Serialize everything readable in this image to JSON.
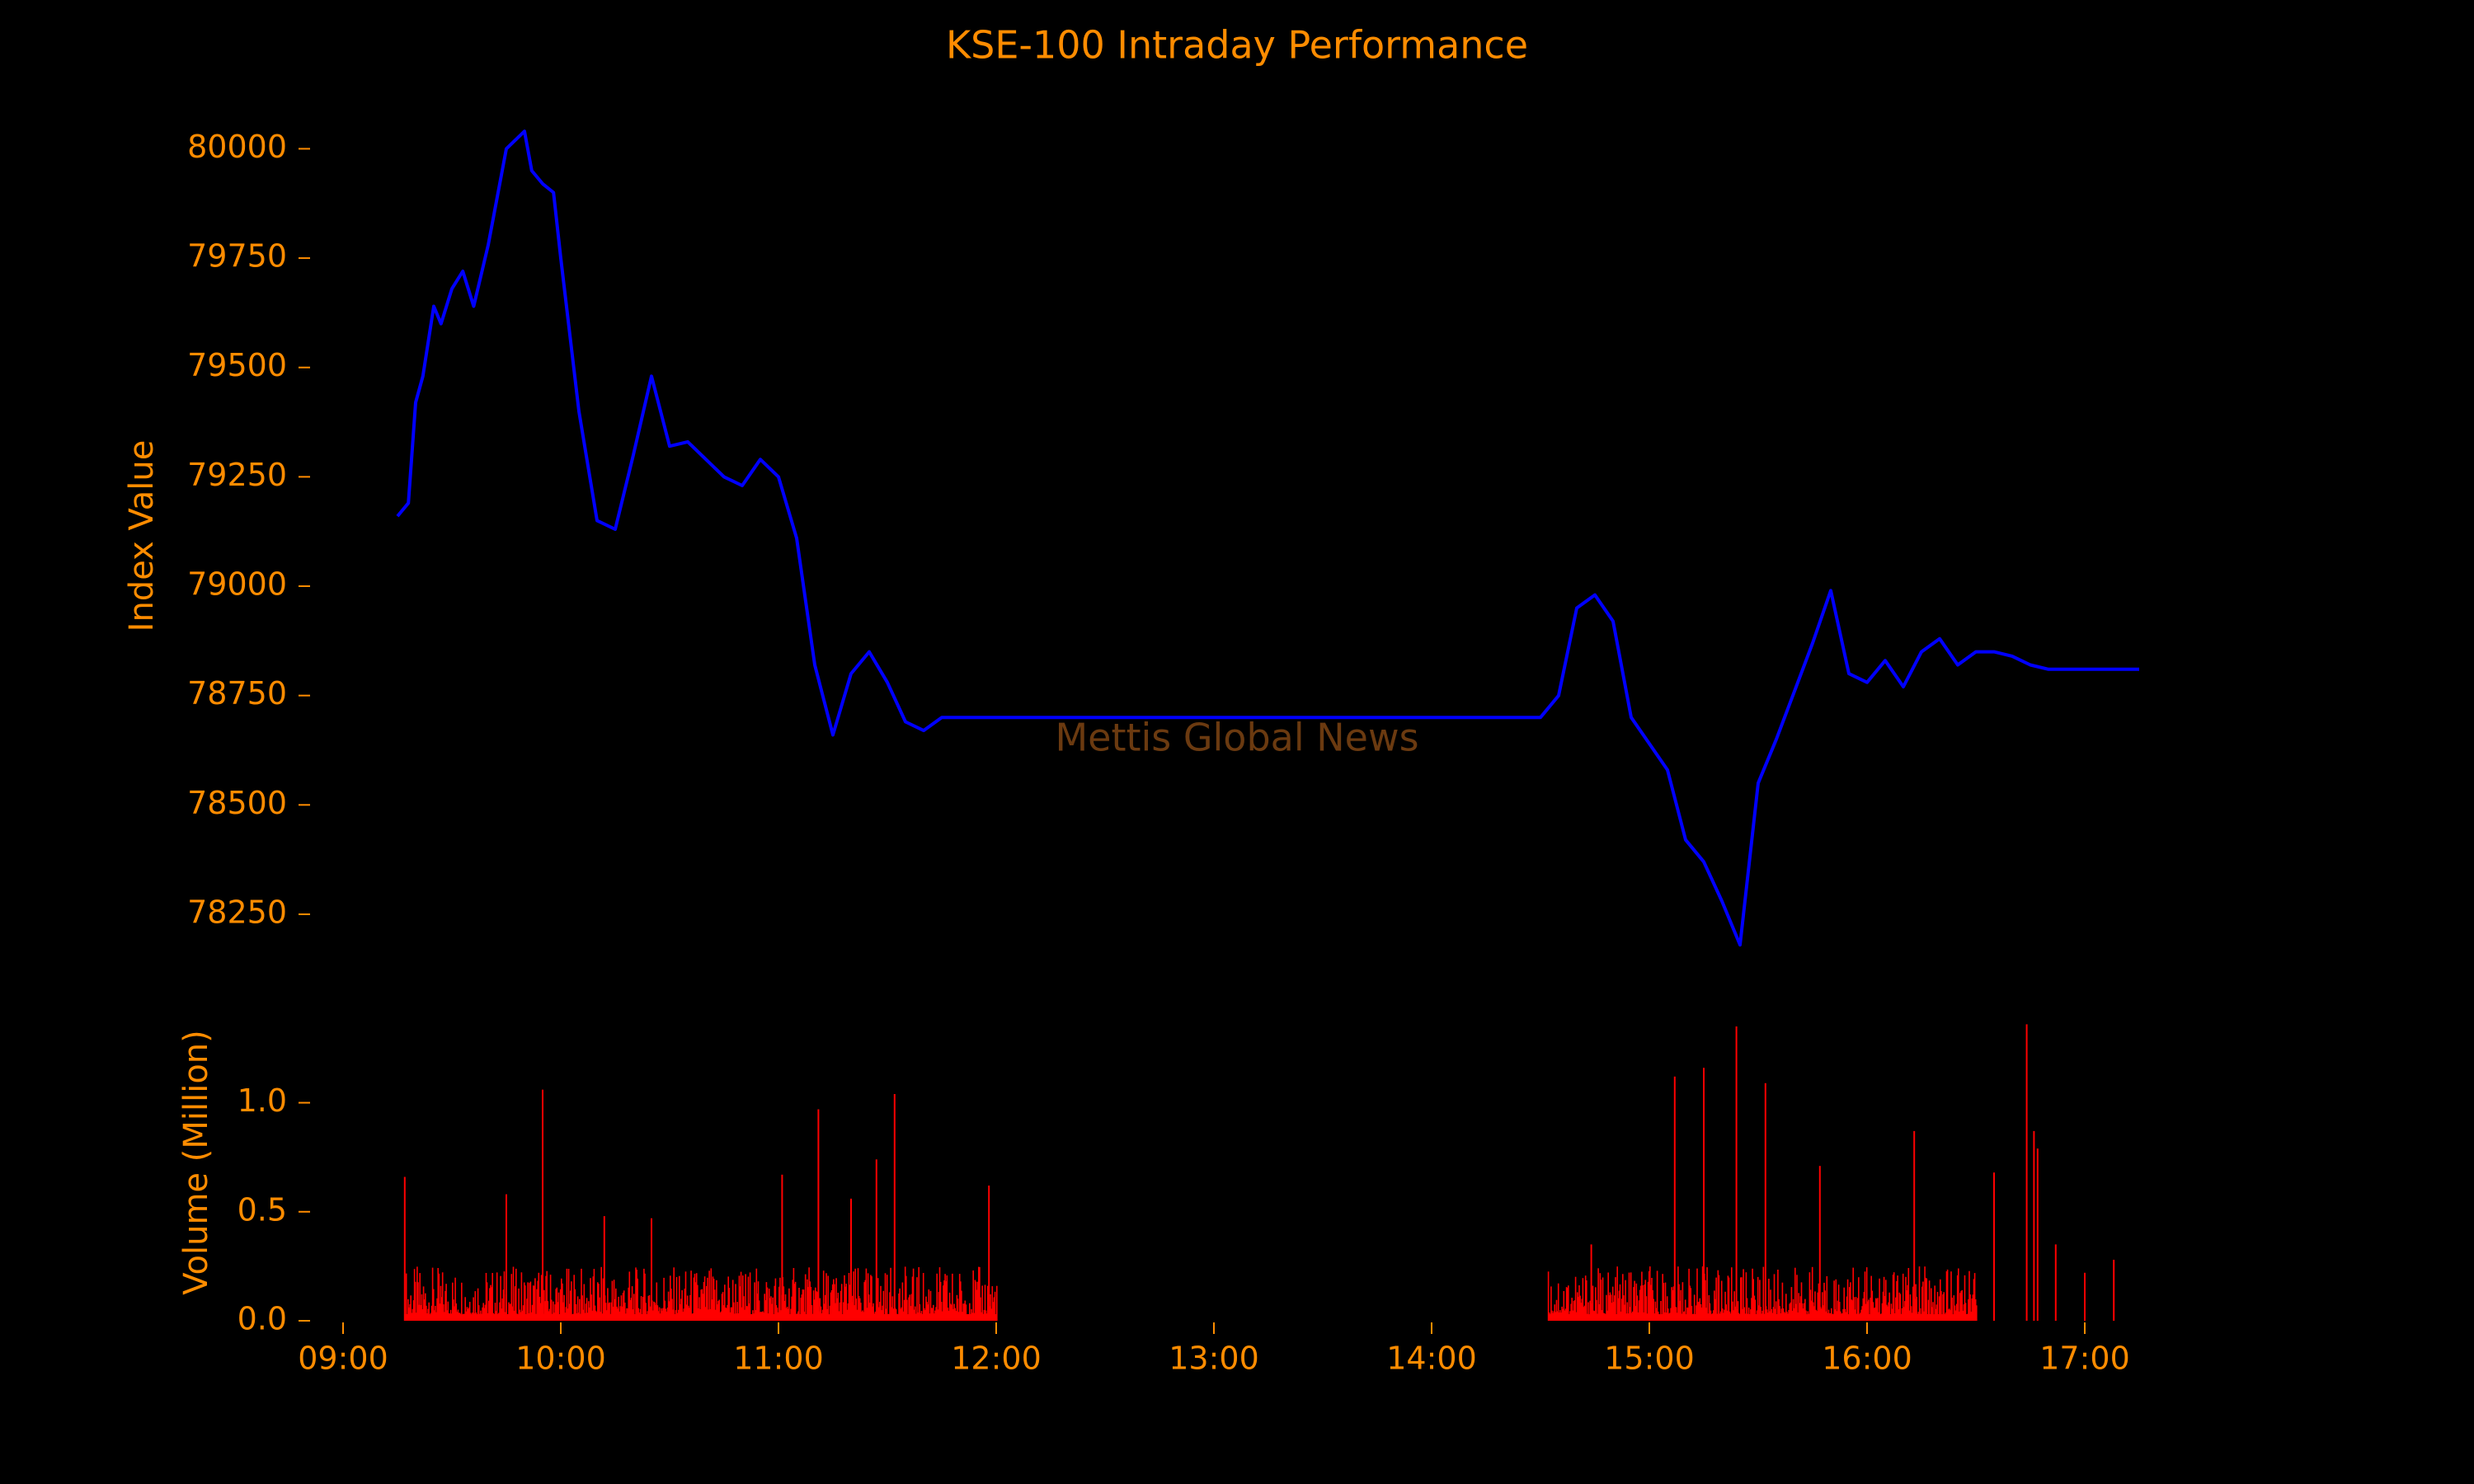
{
  "chart_data": [
    {
      "type": "line",
      "title": "KSE-100 Intraday Performance",
      "xlabel": "",
      "ylabel": "Index Value",
      "ylim": [
        78150,
        80080
      ],
      "yticks": [
        78250,
        78500,
        78750,
        79000,
        79250,
        79500,
        79750,
        80000
      ],
      "xlim": [
        "09:00",
        "17:15"
      ],
      "watermark": "Mettis Global News",
      "colors": {
        "line": "#0000ff",
        "text": "#ff8c00",
        "background": "#000000"
      },
      "grid": false,
      "series": [
        {
          "x": [
            "09:15",
            "09:18",
            "09:20",
            "09:22",
            "09:25",
            "09:27",
            "09:30",
            "09:33",
            "09:36",
            "09:40",
            "09:45",
            "09:50",
            "09:52",
            "09:55",
            "09:58",
            "10:00",
            "10:05",
            "10:10",
            "10:15",
            "10:20",
            "10:25",
            "10:30",
            "10:35",
            "10:40",
            "10:45",
            "10:50",
            "10:55",
            "11:00",
            "11:05",
            "11:10",
            "11:15",
            "11:20",
            "11:25",
            "11:30",
            "11:35",
            "11:40",
            "11:45",
            "11:50",
            "11:55",
            "12:00",
            "12:05",
            "14:30",
            "14:35",
            "14:40",
            "14:45",
            "14:50",
            "14:55",
            "15:00",
            "15:05",
            "15:10",
            "15:15",
            "15:20",
            "15:25",
            "15:30",
            "15:35",
            "15:40",
            "15:45",
            "15:50",
            "15:55",
            "16:00",
            "16:05",
            "16:10",
            "16:15",
            "16:20",
            "16:25",
            "16:30",
            "16:35",
            "16:40",
            "16:45",
            "16:50",
            "17:00",
            "17:10",
            "17:15"
          ],
          "values": [
            79160,
            79190,
            79420,
            79480,
            79640,
            79600,
            79680,
            79720,
            79640,
            79780,
            80000,
            80040,
            79950,
            79920,
            79900,
            79750,
            79400,
            79150,
            79130,
            79300,
            79480,
            79320,
            79330,
            79290,
            79250,
            79230,
            79290,
            79250,
            79110,
            78820,
            78660,
            78800,
            78850,
            78780,
            78690,
            78670,
            78700,
            78700,
            78700,
            78700,
            78700,
            78700,
            78750,
            78950,
            78980,
            78920,
            78700,
            78640,
            78580,
            78420,
            78370,
            78280,
            78180,
            78550,
            78650,
            78760,
            78870,
            78990,
            78800,
            78780,
            78830,
            78770,
            78850,
            78880,
            78820,
            78850,
            78850,
            78840,
            78820,
            78810,
            78810,
            78810,
            78810
          ]
        }
      ]
    },
    {
      "type": "bar",
      "title": "",
      "xlabel": "",
      "ylabel": "Volume (Million)",
      "ylim": [
        0,
        1.35
      ],
      "yticks": [
        0.0,
        0.5,
        1.0
      ],
      "xticks": [
        "09:00",
        "10:00",
        "11:00",
        "12:00",
        "13:00",
        "14:00",
        "15:00",
        "16:00",
        "17:00"
      ],
      "colors": {
        "bar": "#ff0000"
      },
      "grid": false,
      "peaks": [
        {
          "x": "09:17",
          "value": 0.66
        },
        {
          "x": "09:45",
          "value": 0.58
        },
        {
          "x": "09:55",
          "value": 1.06
        },
        {
          "x": "10:12",
          "value": 0.48
        },
        {
          "x": "10:25",
          "value": 0.47
        },
        {
          "x": "11:01",
          "value": 0.67
        },
        {
          "x": "11:11",
          "value": 0.97
        },
        {
          "x": "11:20",
          "value": 0.56
        },
        {
          "x": "11:27",
          "value": 0.74
        },
        {
          "x": "11:32",
          "value": 1.04
        },
        {
          "x": "11:58",
          "value": 0.62
        },
        {
          "x": "14:44",
          "value": 0.35
        },
        {
          "x": "15:07",
          "value": 1.12
        },
        {
          "x": "15:15",
          "value": 1.16
        },
        {
          "x": "15:24",
          "value": 1.35
        },
        {
          "x": "15:32",
          "value": 1.09
        },
        {
          "x": "15:47",
          "value": 0.71
        },
        {
          "x": "16:13",
          "value": 0.87
        },
        {
          "x": "16:35",
          "value": 0.68
        },
        {
          "x": "16:44",
          "value": 1.36
        },
        {
          "x": "16:46",
          "value": 0.87
        },
        {
          "x": "16:47",
          "value": 0.79
        },
        {
          "x": "16:52",
          "value": 0.35
        },
        {
          "x": "17:00",
          "value": 0.22
        },
        {
          "x": "17:08",
          "value": 0.28
        }
      ]
    }
  ]
}
